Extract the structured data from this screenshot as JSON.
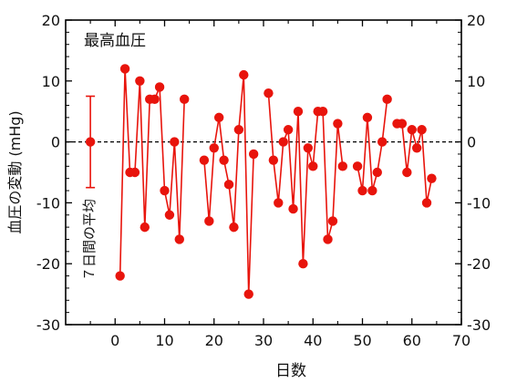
{
  "chart_data": {
    "type": "scatter",
    "title": "",
    "panel_label": "最高血圧",
    "xlabel": "日数",
    "ylabel": "血圧の変動 (mHg)",
    "xlim": [
      -10,
      70
    ],
    "ylim": [
      -30,
      20
    ],
    "x_ticks": [
      0,
      10,
      20,
      30,
      40,
      50,
      60,
      70
    ],
    "y_ticks": [
      -30,
      -20,
      -10,
      0,
      10,
      20
    ],
    "grid": false,
    "baseline": {
      "y": 0,
      "style": "dashed"
    },
    "mean_marker": {
      "label": "７日間の平均",
      "x": -5,
      "y": 0,
      "error_low": -7.5,
      "error_high": 7.5
    },
    "series": [
      {
        "color": "#e8140c",
        "segments": [
          [
            [
              1,
              -22
            ],
            [
              2,
              12
            ],
            [
              3,
              -5
            ],
            [
              4,
              -5
            ],
            [
              5,
              10
            ],
            [
              6,
              -14
            ],
            [
              7,
              7
            ],
            [
              8,
              7
            ],
            [
              9,
              9
            ],
            [
              10,
              -8
            ],
            [
              11,
              -12
            ],
            [
              12,
              0
            ],
            [
              13,
              -16
            ],
            [
              14,
              7
            ]
          ],
          [
            [
              18,
              -3
            ],
            [
              19,
              -13
            ],
            [
              20,
              -1
            ],
            [
              21,
              4
            ],
            [
              22,
              -3
            ],
            [
              23,
              -7
            ],
            [
              24,
              -14
            ],
            [
              25,
              2
            ],
            [
              26,
              11
            ],
            [
              27,
              -25
            ],
            [
              28,
              -2
            ]
          ],
          [
            [
              31,
              8
            ],
            [
              32,
              -3
            ],
            [
              33,
              -10
            ],
            [
              34,
              0
            ],
            [
              35,
              2
            ],
            [
              36,
              -11
            ],
            [
              37,
              5
            ],
            [
              38,
              -20
            ],
            [
              39,
              -1
            ],
            [
              40,
              -4
            ],
            [
              41,
              5
            ],
            [
              42,
              5
            ],
            [
              43,
              -16
            ],
            [
              44,
              -13
            ],
            [
              45,
              3
            ],
            [
              46,
              -4
            ]
          ],
          [
            [
              49,
              -4
            ],
            [
              50,
              -8
            ],
            [
              51,
              4
            ],
            [
              52,
              -8
            ],
            [
              53,
              -5
            ],
            [
              54,
              0
            ],
            [
              55,
              7
            ]
          ],
          [
            [
              57,
              3
            ],
            [
              58,
              3
            ],
            [
              59,
              -5
            ],
            [
              60,
              2
            ],
            [
              61,
              -1
            ],
            [
              62,
              2
            ],
            [
              63,
              -10
            ],
            [
              64,
              -6
            ]
          ]
        ]
      }
    ]
  }
}
